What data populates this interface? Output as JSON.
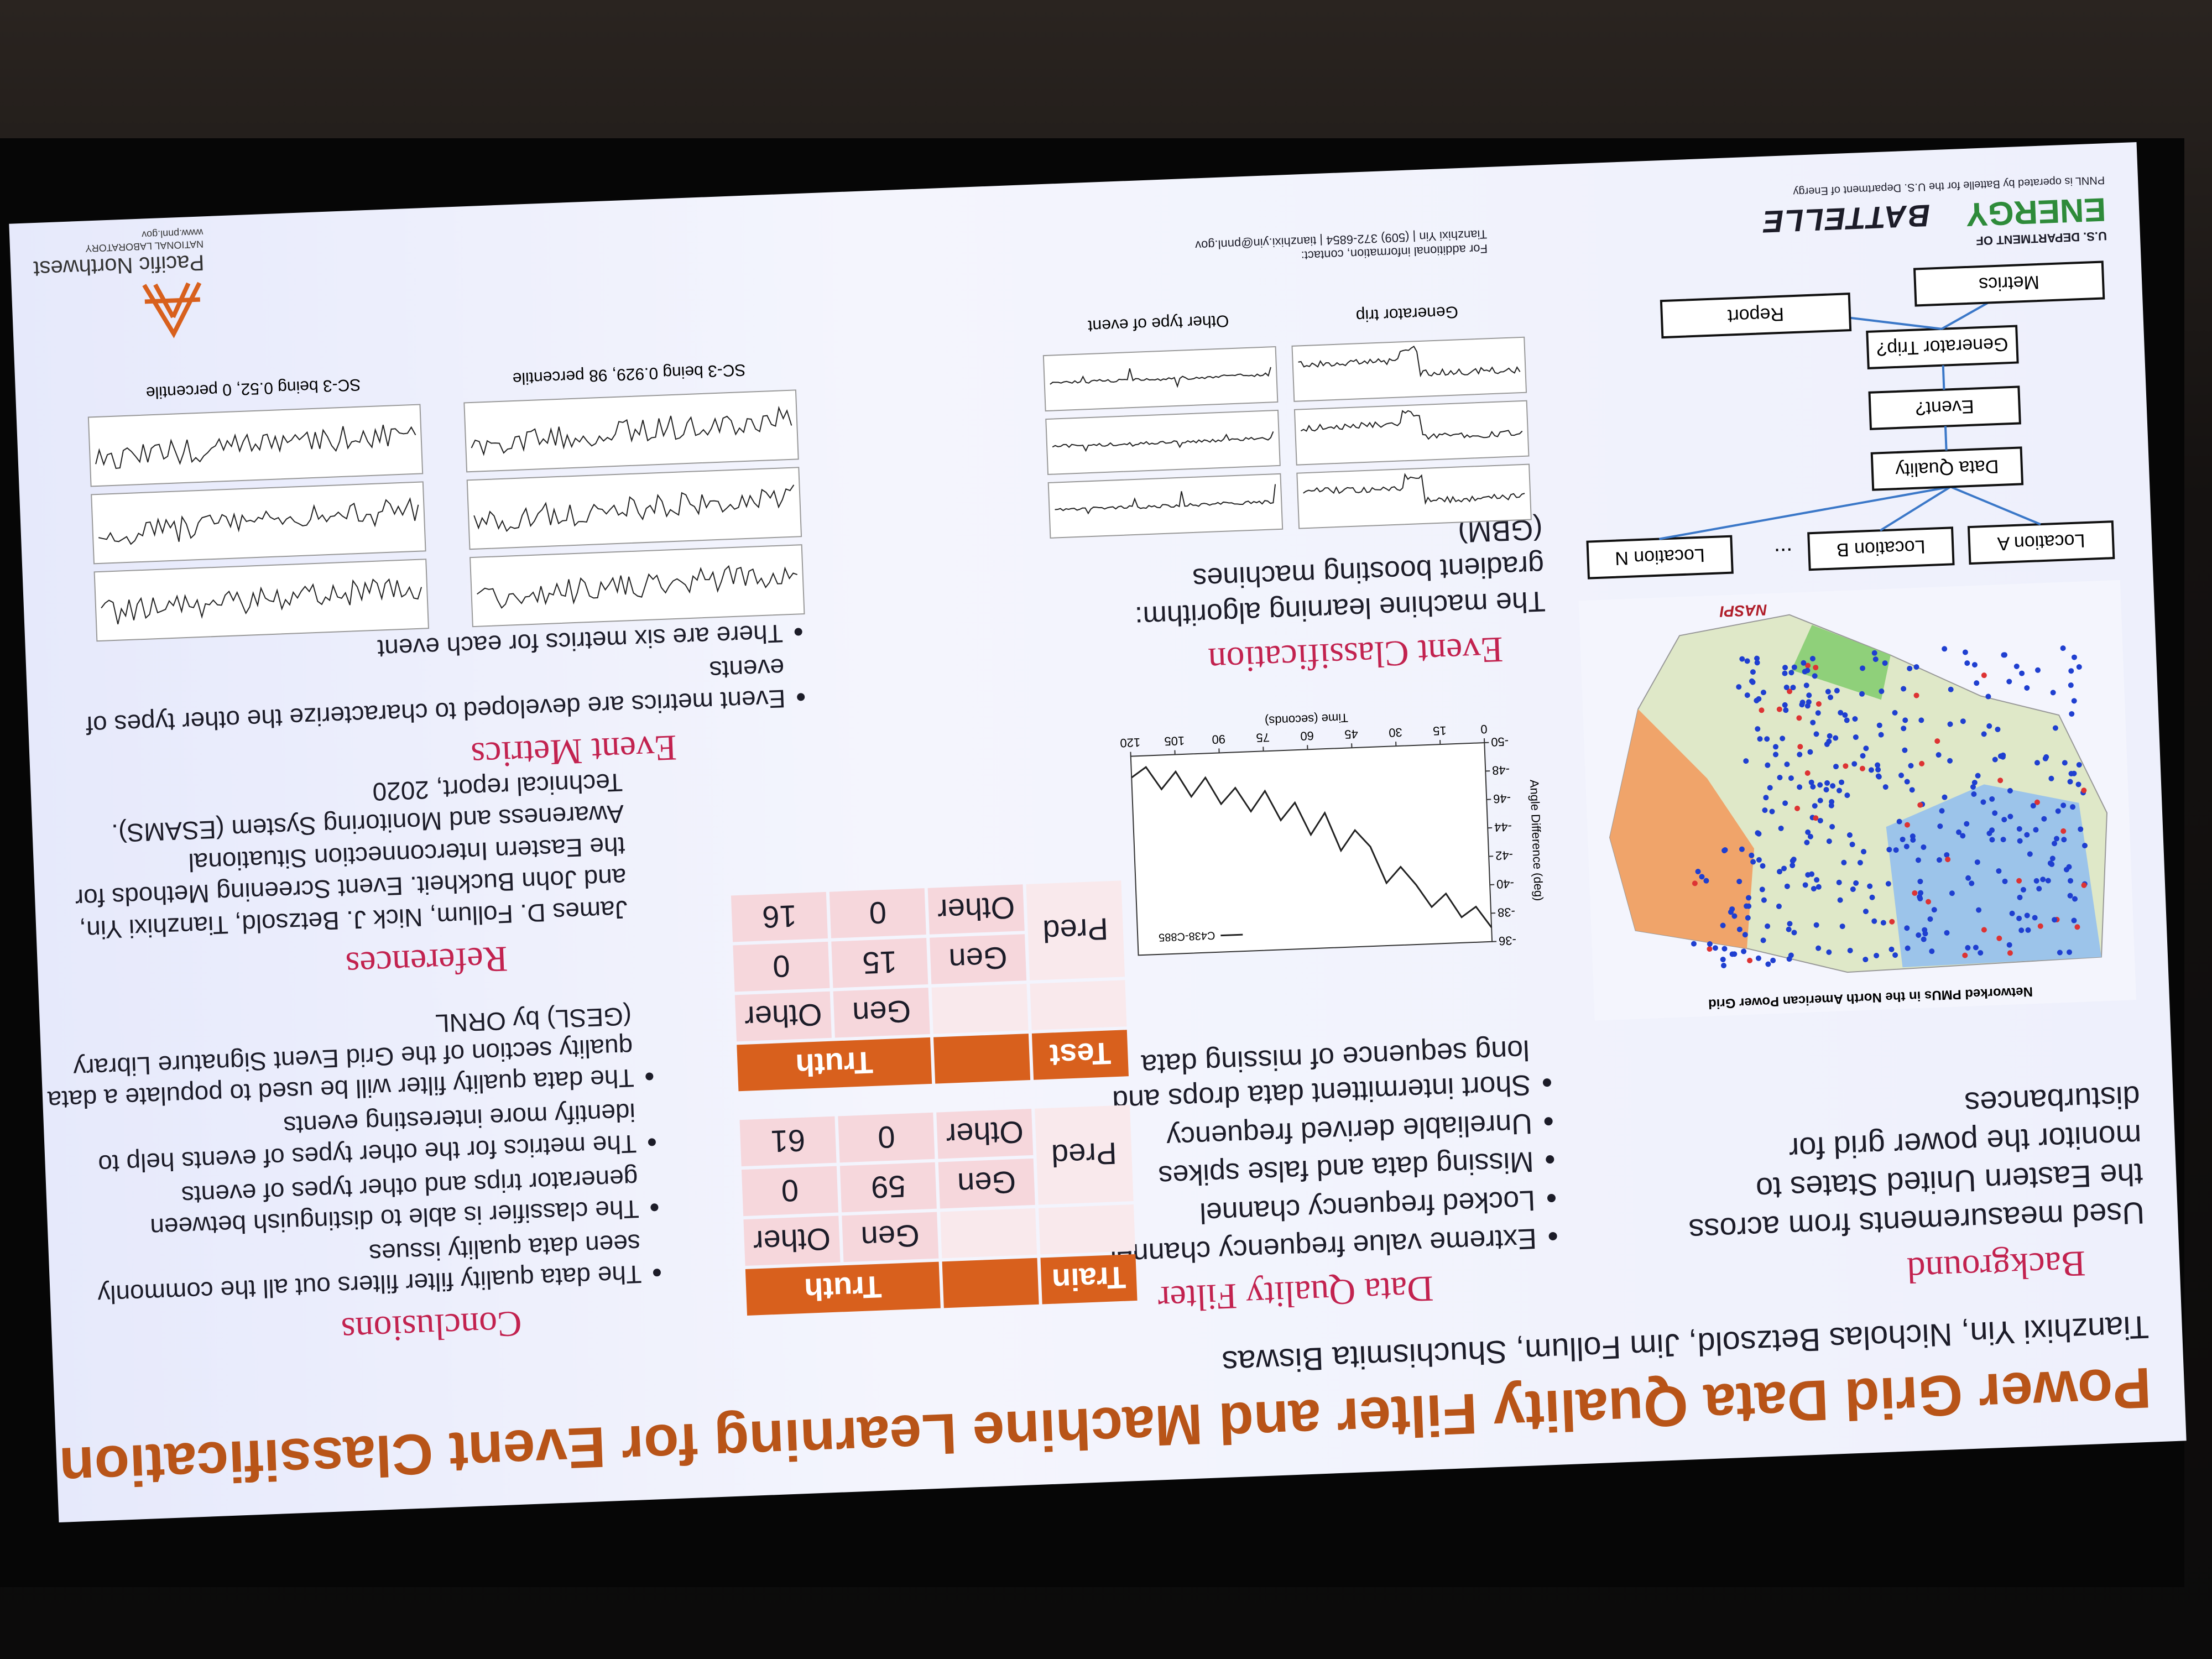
{
  "slide": {
    "title": "Power Grid Data Quality Filter and Machine Learning for Event Classification",
    "authors": "Tianzhixi Yin, Nicholas Betzsold, Jim Follum, Shuchismita Biswas",
    "background": {
      "heading": "Background",
      "text": "Used measurements from across the Eastern United States to monitor the power grid for disturbances",
      "map_title": "Networked PMUs in the North American Power Grid",
      "source": "NASPI"
    },
    "flow": {
      "locations": [
        "Location A",
        "Location B",
        "...",
        "Location N"
      ],
      "steps": [
        "Data Quality",
        "Event?",
        "Generator Trip?"
      ],
      "report": "Report",
      "metrics": "Metrics"
    },
    "data_quality": {
      "heading": "Data Quality Filter",
      "bullets": [
        "Extreme value frequency channel",
        "Locked frequency channel",
        "Missing data and false spikes",
        "Unreliable derived frequency",
        "Short intermittent data drops and long sequence of missing data"
      ]
    },
    "figure": {
      "type": "line",
      "ylabel": "Angle Difference (deg)",
      "xlabel": "Time (seconds)",
      "legend": "C438-C885",
      "color": "#222222",
      "x": [
        0,
        5,
        10,
        15,
        20,
        25,
        30,
        35,
        40,
        45,
        50,
        55,
        60,
        65,
        70,
        75,
        80,
        85,
        90,
        95,
        100,
        105,
        110,
        115,
        120
      ],
      "values": [
        -37,
        -38.5,
        -37.8,
        -39.5,
        -38.6,
        -40.2,
        -41.5,
        -40.4,
        -43,
        -44.2,
        -42.8,
        -45.5,
        -44,
        -46.3,
        -45.1,
        -47.2,
        -45.8,
        -47.5,
        -46.4,
        -48.3,
        -47,
        -48.8,
        -47.6,
        -49.2,
        -48.5
      ],
      "xlim": [
        0,
        120
      ],
      "ylim": [
        -50,
        -36
      ],
      "xticks": [
        0,
        15,
        30,
        45,
        60,
        75,
        90,
        105,
        120
      ],
      "yticks": [
        -50,
        -48,
        -46,
        -44,
        -42,
        -40,
        -38,
        -36
      ]
    },
    "event_classification": {
      "heading": "Event Classification",
      "text": "The machine learning algorithm: gradient boosting machines (GBM)",
      "captions": [
        "Generator trip",
        "Other type of event"
      ]
    },
    "conclusions": {
      "heading": "Conclusions",
      "bullets": [
        "The data quality filter filters out all the commonly seen data quality issues",
        "The classifier is able to distinguish between generator trips and other types of events",
        "The metrics for the other types of events help to identify more interesting events",
        "The data quality filter will be used to populate a data quality section of the Grid Event Signature Library (GESL) by ORNL"
      ]
    },
    "tables": [
      {
        "corner": "Train",
        "truth": "Truth",
        "pred": "Pred",
        "columns": [
          "Gen",
          "Other"
        ],
        "rows": [
          {
            "label": "Gen",
            "values": [
              59,
              0
            ]
          },
          {
            "label": "Other",
            "values": [
              0,
              61
            ]
          }
        ]
      },
      {
        "corner": "Test",
        "truth": "Truth",
        "pred": "Pred",
        "columns": [
          "Gen",
          "Other"
        ],
        "rows": [
          {
            "label": "Gen",
            "values": [
              15,
              0
            ]
          },
          {
            "label": "Other",
            "values": [
              0,
              16
            ]
          }
        ]
      }
    ],
    "references": {
      "heading": "References",
      "text": "James D. Follum, Nick J. Betzsold, Tianzhixi Yin, and John Buckheit. Event Screening Methods for the Eastern Interconnection Situational Awareness and Monitoring System (ESAMS). Technical report, 2020"
    },
    "event_metrics": {
      "heading": "Event Metrics",
      "bullets": [
        "Event metrics are developed to characterize the other types of events",
        "There are six metrics for each event"
      ],
      "captions": [
        "SC-3 being 0.929, 98 percentile",
        "SC-3 being 0.52, 0 percentile"
      ]
    },
    "footer": {
      "doe_small": "U.S. DEPARTMENT OF",
      "doe": "ENERGY",
      "battelle": "BATTELLE",
      "operated": "PNNL is operated by Battelle for the U.S. Department of Energy",
      "contact_label": "For additional information, contact:",
      "contact": "Tianzhixi Yin | (509) 372-6854 | tianzhixi.yin@pnnl.gov",
      "pnnl": "Pacific Northwest",
      "lab": "NATIONAL LABORATORY",
      "url": "www.pnnl.gov"
    }
  }
}
